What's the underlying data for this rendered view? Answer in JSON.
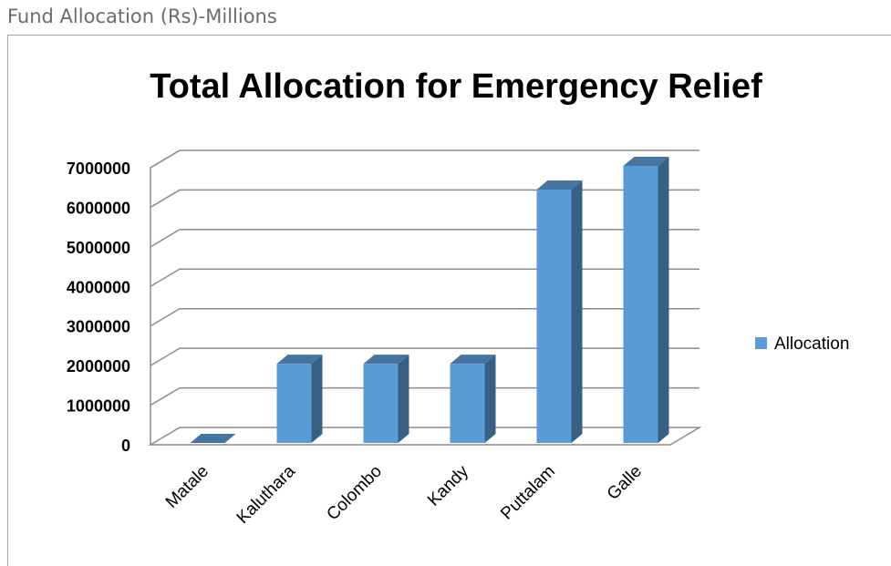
{
  "header": {
    "text": "Fund Allocation (Rs)-Millions"
  },
  "chart_data": {
    "type": "bar",
    "title": "Total Allocation for Emergency Relief",
    "categories": [
      "Matale",
      "Kaluthara",
      "Colombo",
      "Kandy",
      "Puttalam",
      "Galle"
    ],
    "series": [
      {
        "name": "Allocation",
        "values": [
          0,
          2000000,
          2000000,
          2000000,
          6400000,
          7000000
        ],
        "color": "#5b9bd5"
      }
    ],
    "ylim": [
      0,
      7000000
    ],
    "yticks": [
      "0",
      "1000000",
      "2000000",
      "3000000",
      "4000000",
      "5000000",
      "6000000",
      "7000000"
    ],
    "grid": true,
    "legend_position": "right",
    "style": "3d-column"
  }
}
